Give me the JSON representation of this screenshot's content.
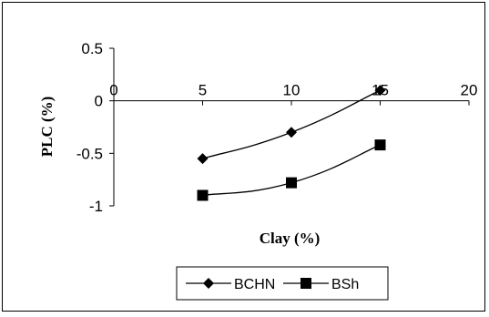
{
  "chart_data": {
    "type": "line",
    "title": "",
    "xlabel": "Clay (%)",
    "ylabel": "PLC (%)",
    "xlim": [
      0,
      20
    ],
    "ylim": [
      -1,
      0.5
    ],
    "x_ticks": [
      0,
      5,
      10,
      15,
      20
    ],
    "x_tick_labels": [
      "0",
      "5",
      "10",
      "15",
      "20"
    ],
    "y_ticks": [
      0.5,
      0,
      -0.5,
      -1
    ],
    "y_tick_labels": [
      "0.5",
      "0",
      "-0.5",
      "-1"
    ],
    "grid": false,
    "legend_position": "bottom",
    "series": [
      {
        "name": "BCHN",
        "marker": "diamond",
        "color": "#000000",
        "x": [
          5,
          10,
          15
        ],
        "y": [
          -0.55,
          -0.3,
          0.1
        ]
      },
      {
        "name": "BSh",
        "marker": "square",
        "color": "#000000",
        "x": [
          5,
          10,
          15
        ],
        "y": [
          -0.9,
          -0.78,
          -0.42
        ]
      }
    ]
  }
}
